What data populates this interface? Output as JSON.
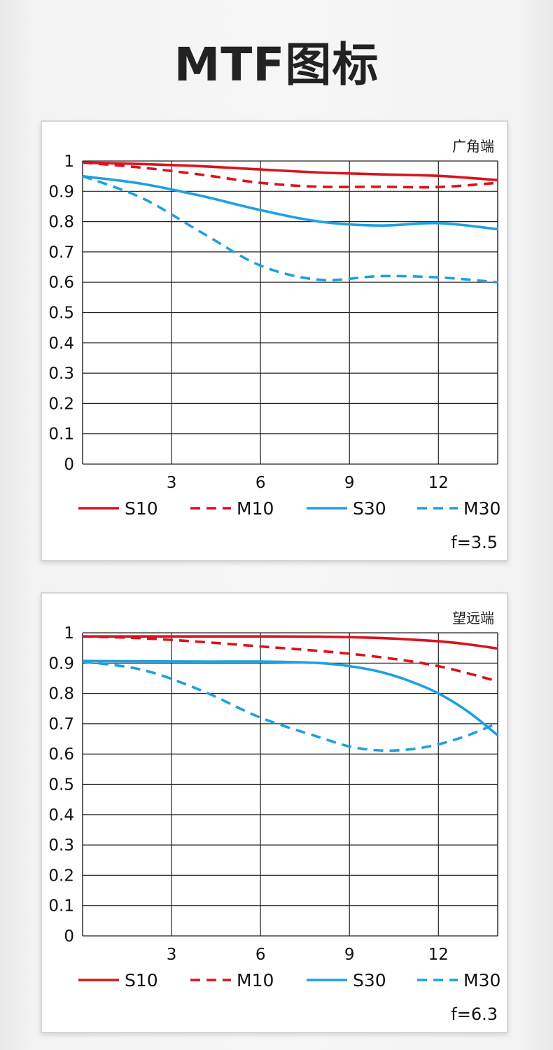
{
  "title": "MTF图标",
  "colors": {
    "sagittal": "#d9131d",
    "meridional_red": "#d9131d",
    "blue": "#1ea0e0",
    "grid": "#222222"
  },
  "legend_labels": [
    "S10",
    "M10",
    "S30",
    "M30"
  ],
  "chart_data": [
    {
      "type": "line",
      "corner_label": "广角端",
      "footer": "f=3.5",
      "xlim": [
        0,
        14
      ],
      "ylim": [
        0,
        1
      ],
      "xticks": [
        3,
        6,
        9,
        12
      ],
      "yticks": [
        0,
        0.1,
        0.2,
        0.3,
        0.4,
        0.5,
        0.6,
        0.7,
        0.8,
        0.9,
        1
      ],
      "ytick_labels": [
        "0",
        "0.1",
        "0.2",
        "0.3",
        "0.4",
        "0.5",
        "0.6",
        "0.7",
        "0.8",
        "0.9",
        "1"
      ],
      "xtick_labels": [
        "3",
        "6",
        "9",
        "12"
      ],
      "grid": true,
      "legend_position": "bottom",
      "series": [
        {
          "name": "S10",
          "color": "#d9131d",
          "dashed": false,
          "x": [
            0,
            2,
            4,
            6,
            8,
            10,
            12,
            14
          ],
          "y": [
            0.995,
            0.99,
            0.983,
            0.972,
            0.962,
            0.956,
            0.951,
            0.937
          ]
        },
        {
          "name": "M10",
          "color": "#d9131d",
          "dashed": true,
          "x": [
            0,
            2,
            4,
            6,
            8,
            10,
            12,
            14
          ],
          "y": [
            0.995,
            0.978,
            0.955,
            0.928,
            0.915,
            0.915,
            0.914,
            0.928
          ]
        },
        {
          "name": "S30",
          "color": "#1ea0e0",
          "dashed": false,
          "x": [
            0,
            2,
            4,
            6,
            8,
            10,
            12,
            14
          ],
          "y": [
            0.95,
            0.925,
            0.885,
            0.838,
            0.8,
            0.787,
            0.795,
            0.775
          ]
        },
        {
          "name": "M30",
          "color": "#1ea0e0",
          "dashed": true,
          "x": [
            0,
            2,
            4,
            6,
            8,
            10,
            12,
            14
          ],
          "y": [
            0.95,
            0.878,
            0.765,
            0.655,
            0.608,
            0.62,
            0.616,
            0.6
          ]
        }
      ]
    },
    {
      "type": "line",
      "corner_label": "望远端",
      "footer": "f=6.3",
      "xlim": [
        0,
        14
      ],
      "ylim": [
        0,
        1
      ],
      "xticks": [
        3,
        6,
        9,
        12
      ],
      "yticks": [
        0,
        0.1,
        0.2,
        0.3,
        0.4,
        0.5,
        0.6,
        0.7,
        0.8,
        0.9,
        1
      ],
      "ytick_labels": [
        "0",
        "0.1",
        "0.2",
        "0.3",
        "0.4",
        "0.5",
        "0.6",
        "0.7",
        "0.8",
        "0.9",
        "1"
      ],
      "xtick_labels": [
        "3",
        "6",
        "9",
        "12"
      ],
      "grid": true,
      "legend_position": "bottom",
      "series": [
        {
          "name": "S10",
          "color": "#d9131d",
          "dashed": false,
          "x": [
            0,
            2,
            4,
            6,
            8,
            10,
            12,
            13,
            14
          ],
          "y": [
            0.988,
            0.988,
            0.988,
            0.988,
            0.987,
            0.983,
            0.972,
            0.962,
            0.948
          ]
        },
        {
          "name": "M10",
          "color": "#d9131d",
          "dashed": true,
          "x": [
            0,
            2,
            4,
            6,
            8,
            10,
            12,
            14
          ],
          "y": [
            0.988,
            0.982,
            0.97,
            0.955,
            0.94,
            0.92,
            0.89,
            0.84
          ]
        },
        {
          "name": "S30",
          "color": "#1ea0e0",
          "dashed": false,
          "x": [
            0,
            2,
            4,
            6,
            8,
            9,
            10,
            11,
            12,
            13,
            14
          ],
          "y": [
            0.907,
            0.906,
            0.905,
            0.905,
            0.9,
            0.89,
            0.872,
            0.842,
            0.8,
            0.74,
            0.662
          ]
        },
        {
          "name": "M30",
          "color": "#1ea0e0",
          "dashed": true,
          "x": [
            0,
            2,
            4,
            6,
            8,
            9,
            10,
            11,
            12,
            13,
            14
          ],
          "y": [
            0.905,
            0.878,
            0.81,
            0.72,
            0.655,
            0.625,
            0.612,
            0.615,
            0.632,
            0.662,
            0.702
          ]
        }
      ]
    }
  ]
}
